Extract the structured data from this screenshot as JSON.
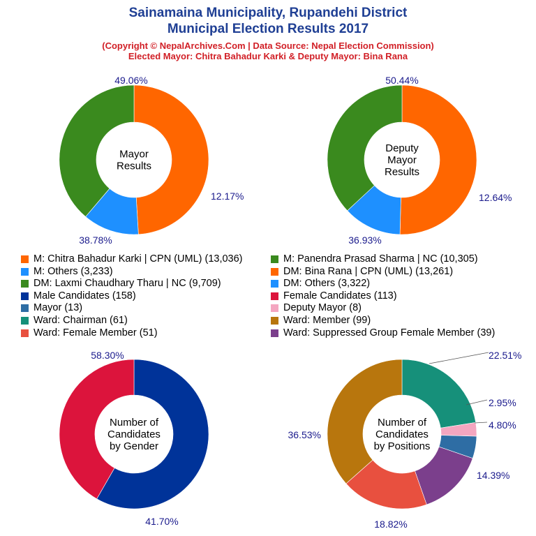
{
  "header": {
    "title_line1": "Sainamaina Municipality, Rupandehi District",
    "title_line2": "Municipal Election Results 2017",
    "subtitle_line1": "(Copyright © NepalArchives.Com | Data Source: Nepal Election Commission)",
    "subtitle_line2": "Elected Mayor: Chitra Bahadur Karki & Deputy Mayor: Bina Rana"
  },
  "legend": [
    {
      "label": "M: Chitra Bahadur Karki | CPN (UML) (13,036)",
      "color": "#ff6600"
    },
    {
      "label": "M: Panendra Prasad Sharma | NC (10,305)",
      "color": "#3a8a1e"
    },
    {
      "label": "M: Others (3,233)",
      "color": "#1e90ff"
    },
    {
      "label": "DM: Bina Rana | CPN (UML) (13,261)",
      "color": "#ff6600"
    },
    {
      "label": "DM: Laxmi Chaudhary Tharu | NC (9,709)",
      "color": "#3a8a1e"
    },
    {
      "label": "DM: Others (3,322)",
      "color": "#1e90ff"
    },
    {
      "label": "Male Candidates (158)",
      "color": "#003399"
    },
    {
      "label": "Female Candidates (113)",
      "color": "#dc143c"
    },
    {
      "label": "Mayor (13)",
      "color": "#2e6da4"
    },
    {
      "label": "Deputy Mayor (8)",
      "color": "#f4a6c0"
    },
    {
      "label": "Ward: Chairman (61)",
      "color": "#16907a"
    },
    {
      "label": "Ward: Member (99)",
      "color": "#b8760d"
    },
    {
      "label": "Ward: Female Member (51)",
      "color": "#e8503f"
    },
    {
      "label": "Ward: Suppressed Group Female Member (39)",
      "color": "#7b3f8c"
    }
  ],
  "chart_data": [
    {
      "type": "pie",
      "center_label": [
        "Mayor",
        "Results"
      ],
      "slices": [
        {
          "name": "M: Chitra Bahadur Karki | CPN (UML)",
          "value": 13036,
          "percent_label": "49.06%",
          "color": "#ff6600"
        },
        {
          "name": "M: Others",
          "value": 3233,
          "percent_label": "12.17%",
          "color": "#1e90ff"
        },
        {
          "name": "M: Panendra Prasad Sharma | NC",
          "value": 10305,
          "percent_label": "38.78%",
          "color": "#3a8a1e"
        }
      ]
    },
    {
      "type": "pie",
      "center_label": [
        "Deputy",
        "Mayor",
        "Results"
      ],
      "slices": [
        {
          "name": "DM: Bina Rana | CPN (UML)",
          "value": 13261,
          "percent_label": "50.44%",
          "color": "#ff6600"
        },
        {
          "name": "DM: Others",
          "value": 3322,
          "percent_label": "12.64%",
          "color": "#1e90ff"
        },
        {
          "name": "DM: Laxmi Chaudhary Tharu | NC",
          "value": 9709,
          "percent_label": "36.93%",
          "color": "#3a8a1e"
        }
      ]
    },
    {
      "type": "pie",
      "center_label": [
        "Number of",
        "Candidates",
        "by Gender"
      ],
      "slices": [
        {
          "name": "Male Candidates",
          "value": 158,
          "percent_label": "58.30%",
          "color": "#003399"
        },
        {
          "name": "Female Candidates",
          "value": 113,
          "percent_label": "41.70%",
          "color": "#dc143c"
        }
      ]
    },
    {
      "type": "pie",
      "center_label": [
        "Number of",
        "Candidates",
        "by Positions"
      ],
      "slices": [
        {
          "name": "Ward: Chairman",
          "value": 61,
          "percent_label": "22.51%",
          "color": "#16907a"
        },
        {
          "name": "Deputy Mayor",
          "value": 8,
          "percent_label": "2.95%",
          "color": "#f4a6c0"
        },
        {
          "name": "Mayor",
          "value": 13,
          "percent_label": "4.80%",
          "color": "#2e6da4"
        },
        {
          "name": "Ward: Suppressed Group Female Member",
          "value": 39,
          "percent_label": "14.39%",
          "color": "#7b3f8c"
        },
        {
          "name": "Ward: Female Member",
          "value": 51,
          "percent_label": "18.82%",
          "color": "#e8503f"
        },
        {
          "name": "Ward: Member",
          "value": 99,
          "percent_label": "36.53%",
          "color": "#b8760d"
        }
      ]
    }
  ]
}
